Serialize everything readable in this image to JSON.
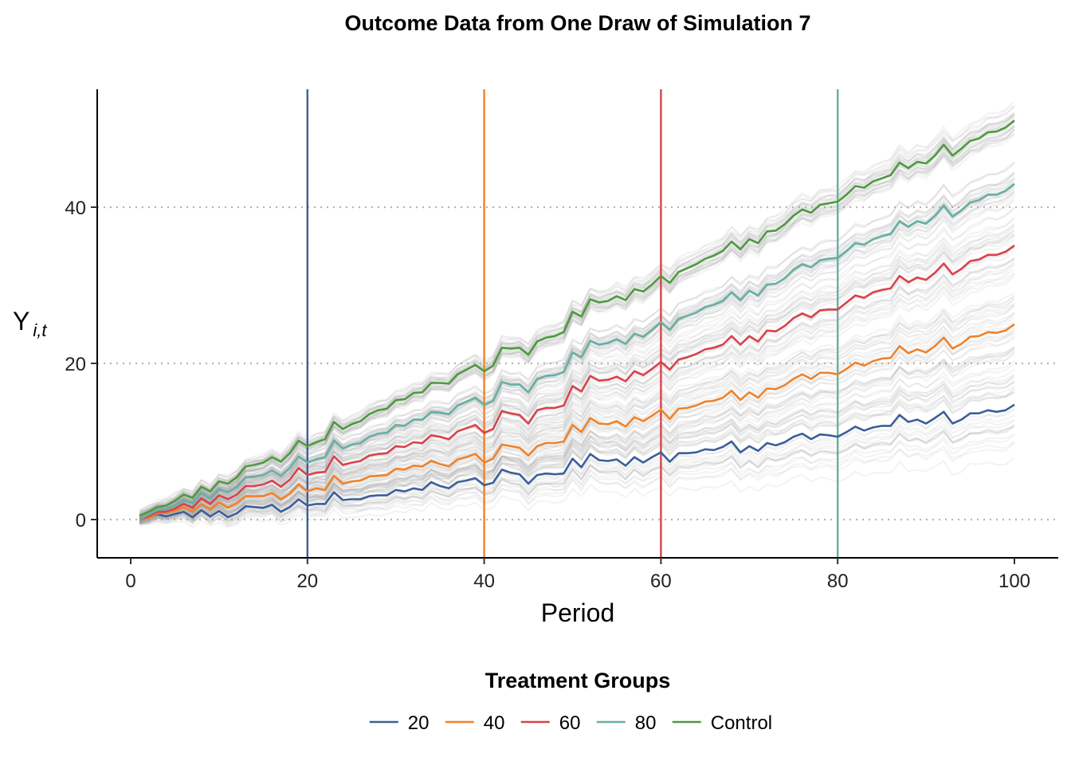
{
  "chart_data": {
    "type": "line",
    "title": "Outcome Data from One Draw of Simulation 7",
    "xlabel": "Period",
    "ylabel_main": "Y",
    "ylabel_sub": "i,t",
    "xlim": [
      0,
      100
    ],
    "ylim": [
      -5,
      55
    ],
    "x_ticks": [
      0,
      20,
      40,
      60,
      80,
      100
    ],
    "y_ticks": [
      0,
      20,
      40
    ],
    "grid": "horizontal dotted",
    "legend_title": "Treatment Groups",
    "legend_position": "bottom",
    "vertical_lines": [
      {
        "x": 20,
        "color": "#3b5f9a"
      },
      {
        "x": 40,
        "color": "#ef8229"
      },
      {
        "x": 60,
        "color": "#d8434c"
      },
      {
        "x": 80,
        "color": "#65b0a4"
      }
    ],
    "series": [
      {
        "name": "20",
        "color": "#3b5f9a",
        "x_start": 1,
        "x_step": 1,
        "values": [
          0.0,
          0.3,
          0.7,
          0.4,
          0.7,
          1.0,
          0.3,
          1.2,
          0.4,
          1.1,
          0.3,
          0.8,
          1.7,
          1.6,
          1.5,
          1.9,
          1.0,
          1.6,
          2.6,
          1.8,
          2.0,
          2.0,
          3.5,
          2.5,
          2.6,
          2.6,
          3.0,
          3.1,
          3.1,
          3.8,
          3.6,
          4.0,
          3.8,
          4.8,
          4.3,
          4.0,
          4.8,
          5.0,
          5.3,
          4.4,
          4.7,
          6.4,
          6.0,
          5.8,
          4.6,
          5.7,
          5.9,
          5.8,
          5.9,
          7.8,
          6.7,
          8.4,
          7.6,
          7.5,
          7.7,
          6.9,
          8.0,
          7.3,
          8.0,
          8.6,
          7.4,
          8.5,
          8.5,
          8.6,
          9.0,
          8.9,
          9.3,
          10.0,
          8.6,
          9.4,
          8.8,
          9.8,
          9.5,
          9.9,
          10.6,
          11.0,
          10.3,
          10.9,
          10.8,
          10.6,
          11.2,
          11.9,
          11.4,
          11.8,
          12.0,
          12.0,
          13.4,
          12.5,
          12.8,
          12.3,
          13.0,
          13.8,
          12.3,
          12.8,
          13.6,
          13.6,
          14.0,
          13.8,
          14.0,
          14.7
        ]
      },
      {
        "name": "40",
        "color": "#ef8229",
        "x_start": 1,
        "x_step": 1,
        "values": [
          0.0,
          0.2,
          0.8,
          0.9,
          1.1,
          1.6,
          1.0,
          2.0,
          1.3,
          2.2,
          1.5,
          2.1,
          3.0,
          3.0,
          3.0,
          3.4,
          2.6,
          3.3,
          4.5,
          3.6,
          4.0,
          3.8,
          5.6,
          4.6,
          4.9,
          5.0,
          5.5,
          5.6,
          5.7,
          6.5,
          6.4,
          6.9,
          6.8,
          7.5,
          7.1,
          6.8,
          7.7,
          8.0,
          8.4,
          7.3,
          7.8,
          9.6,
          9.4,
          9.2,
          8.2,
          9.4,
          9.8,
          9.8,
          10.0,
          12.1,
          11.2,
          13.0,
          12.3,
          12.2,
          12.6,
          11.9,
          13.1,
          12.6,
          13.3,
          14.1,
          12.9,
          14.2,
          14.3,
          14.6,
          15.1,
          15.2,
          15.6,
          16.5,
          15.3,
          16.3,
          15.6,
          16.8,
          16.7,
          17.2,
          18.0,
          18.6,
          18.0,
          18.8,
          18.8,
          18.6,
          19.3,
          20.1,
          19.7,
          20.3,
          20.6,
          20.7,
          22.2,
          21.3,
          21.8,
          21.4,
          22.2,
          23.3,
          21.9,
          22.5,
          23.4,
          23.5,
          24.0,
          23.9,
          24.2,
          25.0
        ]
      },
      {
        "name": "60",
        "color": "#d8434c",
        "x_start": 1,
        "x_step": 1,
        "values": [
          0.0,
          0.4,
          1.0,
          1.0,
          1.4,
          2.0,
          1.5,
          2.7,
          2.0,
          3.1,
          2.6,
          3.2,
          4.3,
          4.3,
          4.5,
          5.0,
          4.2,
          5.1,
          6.6,
          5.7,
          6.0,
          6.1,
          8.1,
          7.0,
          7.3,
          7.5,
          8.2,
          8.4,
          8.5,
          9.4,
          9.3,
          9.9,
          9.8,
          10.8,
          10.6,
          10.3,
          11.3,
          11.7,
          12.1,
          11.1,
          11.6,
          13.9,
          13.6,
          13.4,
          12.3,
          14.0,
          14.3,
          14.3,
          14.6,
          17.1,
          16.4,
          18.4,
          17.8,
          17.9,
          18.3,
          17.7,
          19.0,
          18.5,
          19.3,
          20.2,
          19.2,
          20.5,
          20.8,
          21.2,
          21.8,
          22.0,
          22.4,
          23.5,
          22.4,
          23.5,
          22.8,
          24.2,
          24.1,
          24.8,
          25.8,
          26.4,
          25.9,
          26.8,
          26.9,
          26.9,
          27.8,
          28.7,
          28.4,
          29.1,
          29.4,
          29.6,
          31.2,
          30.4,
          31.0,
          30.7,
          31.6,
          32.8,
          31.4,
          32.1,
          33.1,
          33.3,
          33.9,
          33.9,
          34.3,
          35.1
        ]
      },
      {
        "name": "80",
        "color": "#65b0a4",
        "x_start": 1,
        "x_step": 1,
        "values": [
          0.0,
          0.6,
          1.2,
          1.3,
          1.8,
          2.5,
          2.1,
          3.4,
          2.7,
          3.9,
          3.5,
          4.2,
          5.4,
          5.5,
          5.7,
          6.3,
          5.6,
          6.6,
          8.1,
          7.3,
          7.7,
          8.0,
          10.1,
          9.1,
          9.6,
          9.8,
          10.6,
          11.0,
          11.1,
          12.1,
          12.0,
          12.8,
          12.8,
          13.8,
          13.7,
          13.5,
          14.6,
          15.1,
          15.6,
          14.7,
          15.2,
          17.6,
          17.3,
          17.3,
          16.3,
          18.0,
          18.4,
          18.5,
          18.9,
          21.4,
          20.8,
          22.9,
          22.4,
          22.6,
          23.1,
          22.5,
          23.8,
          23.4,
          24.3,
          25.3,
          24.3,
          25.7,
          26.1,
          26.5,
          27.2,
          27.5,
          28.0,
          29.1,
          28.1,
          29.3,
          28.7,
          30.1,
          30.2,
          30.9,
          32.0,
          32.7,
          32.3,
          33.2,
          33.4,
          33.5,
          34.4,
          35.4,
          35.2,
          35.9,
          36.3,
          36.6,
          38.2,
          37.5,
          38.2,
          37.9,
          38.9,
          40.2,
          38.8,
          39.6,
          40.6,
          40.9,
          41.6,
          41.6,
          42.1,
          43.0
        ]
      },
      {
        "name": "Control",
        "color": "#4d9a3f",
        "x_start": 1,
        "x_step": 1,
        "values": [
          0.5,
          1.0,
          1.6,
          1.8,
          2.4,
          3.2,
          2.8,
          4.2,
          3.6,
          4.9,
          4.6,
          5.4,
          6.8,
          7.0,
          7.3,
          8.0,
          7.4,
          8.5,
          10.1,
          9.4,
          9.9,
          10.3,
          12.5,
          11.6,
          12.2,
          12.6,
          13.5,
          14.0,
          14.2,
          15.3,
          15.4,
          16.2,
          16.3,
          17.5,
          17.5,
          17.4,
          18.6,
          19.2,
          19.8,
          19.0,
          19.7,
          22.0,
          21.9,
          22.0,
          21.1,
          22.8,
          23.3,
          23.5,
          24.0,
          26.6,
          26.0,
          28.2,
          27.8,
          28.0,
          28.6,
          28.1,
          29.5,
          29.2,
          30.1,
          31.2,
          30.3,
          31.7,
          32.2,
          32.7,
          33.4,
          33.8,
          34.4,
          35.6,
          34.6,
          35.9,
          35.4,
          36.9,
          37.0,
          37.8,
          38.9,
          39.7,
          39.3,
          40.3,
          40.5,
          40.7,
          41.6,
          42.7,
          42.5,
          43.3,
          43.7,
          44.1,
          45.7,
          45.0,
          45.8,
          45.6,
          46.6,
          48.0,
          46.6,
          47.5,
          48.5,
          48.8,
          49.6,
          49.7,
          50.2,
          51.1
        ]
      }
    ]
  }
}
